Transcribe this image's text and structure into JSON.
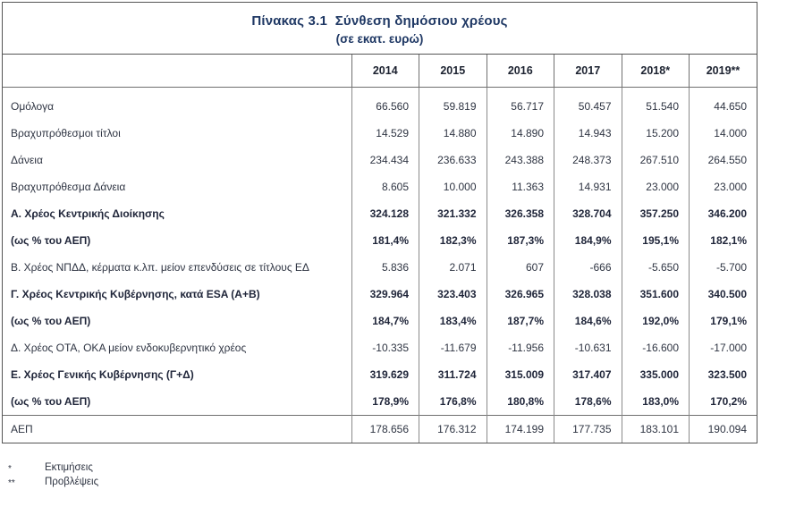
{
  "title": {
    "line1": "Πίνακας 3.1  Σύνθεση δημόσιου χρέους",
    "line2": "(σε εκατ. ευρώ)"
  },
  "columns": [
    "2014",
    "2015",
    "2016",
    "2017",
    "2018*",
    "2019**"
  ],
  "rows": [
    {
      "label": "Ομόλογα",
      "values": [
        "66.560",
        "59.819",
        "56.717",
        "50.457",
        "51.540",
        "44.650"
      ],
      "bold": false
    },
    {
      "label": "Βραχυπρόθεσμοι τίτλοι",
      "values": [
        "14.529",
        "14.880",
        "14.890",
        "14.943",
        "15.200",
        "14.000"
      ],
      "bold": false
    },
    {
      "label": "Δάνεια",
      "values": [
        "234.434",
        "236.633",
        "243.388",
        "248.373",
        "267.510",
        "264.550"
      ],
      "bold": false
    },
    {
      "label": "Βραχυπρόθεσμα Δάνεια",
      "values": [
        "8.605",
        "10.000",
        "11.363",
        "14.931",
        "23.000",
        "23.000"
      ],
      "bold": false
    },
    {
      "label": "Α. Χρέος Κεντρικής Διοίκησης",
      "values": [
        "324.128",
        "321.332",
        "326.358",
        "328.704",
        "357.250",
        "346.200"
      ],
      "bold": true
    },
    {
      "label": "(ως % του ΑΕΠ)",
      "values": [
        "181,4%",
        "182,3%",
        "187,3%",
        "184,9%",
        "195,1%",
        "182,1%"
      ],
      "bold": true
    },
    {
      "label": "Β. Χρέος ΝΠΔΔ, κέρματα κ.λπ. μείον επενδύσεις σε τίτλους ΕΔ",
      "values": [
        "5.836",
        "2.071",
        "607",
        "-666",
        "-5.650",
        "-5.700"
      ],
      "bold": false
    },
    {
      "label": "Γ. Χρέος Κεντρικής Κυβέρνησης, κατά ESA (Α+Β)",
      "values": [
        "329.964",
        "323.403",
        "326.965",
        "328.038",
        "351.600",
        "340.500"
      ],
      "bold": true
    },
    {
      "label": "(ως % του ΑΕΠ)",
      "values": [
        "184,7%",
        "183,4%",
        "187,7%",
        "184,6%",
        "192,0%",
        "179,1%"
      ],
      "bold": true
    },
    {
      "label": "Δ. Χρέος ΟΤΑ, ΟΚΑ μείον ενδοκυβερνητικό χρέος",
      "values": [
        "-10.335",
        "-11.679",
        "-11.956",
        "-10.631",
        "-16.600",
        "-17.000"
      ],
      "bold": false
    },
    {
      "label": "Ε. Χρέος Γενικής Κυβέρνησης (Γ+Δ)",
      "values": [
        "319.629",
        "311.724",
        "315.009",
        "317.407",
        "335.000",
        "323.500"
      ],
      "bold": true
    },
    {
      "label": "(ως % του ΑΕΠ)",
      "values": [
        "178,9%",
        "176,8%",
        "180,8%",
        "178,6%",
        "183,0%",
        "170,2%"
      ],
      "bold": true
    },
    {
      "label": "ΑΕΠ",
      "values": [
        "178.656",
        "176.312",
        "174.199",
        "177.735",
        "183.101",
        "190.094"
      ],
      "bold": false,
      "topBorder": true
    }
  ],
  "footnotes": [
    {
      "marker": "*",
      "text": "Εκτιμήσεις"
    },
    {
      "marker": "**",
      "text": "Προβλέψεις"
    }
  ]
}
